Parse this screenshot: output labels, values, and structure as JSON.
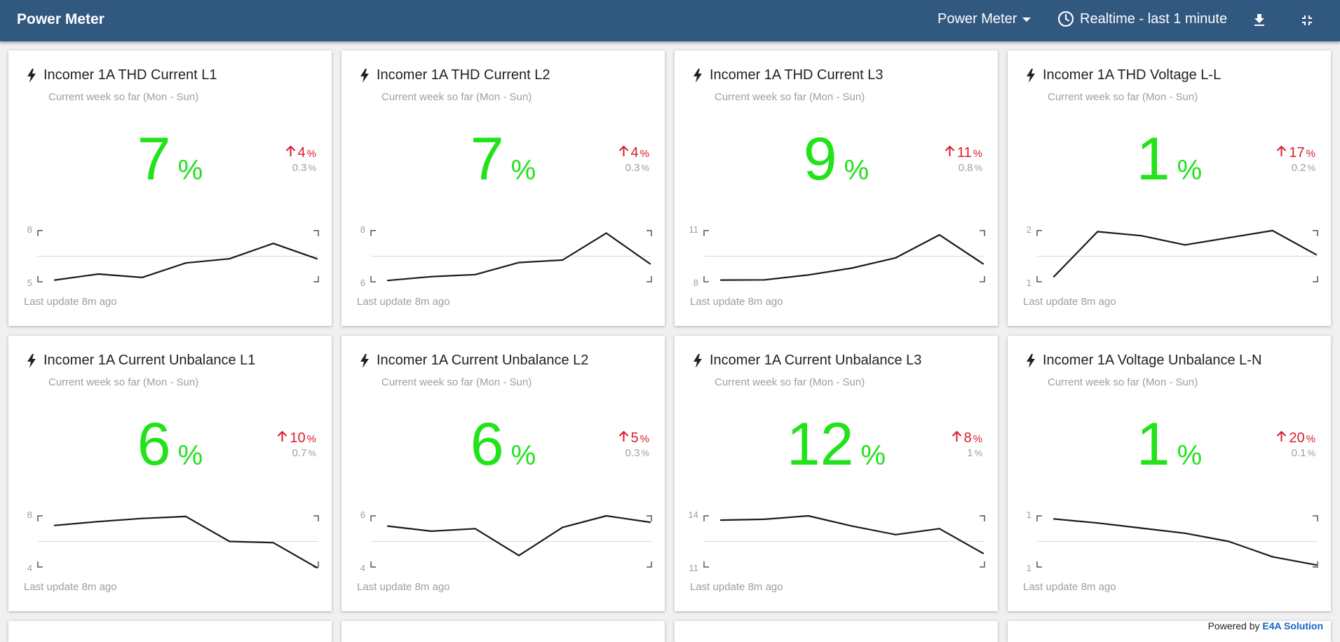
{
  "header": {
    "title": "Power Meter",
    "dashboard_select": "Power Meter",
    "time_range": "Realtime - last 1 minute",
    "icons": [
      "clock-icon",
      "download-icon",
      "exit-fullscreen-icon"
    ]
  },
  "colors": {
    "header_bg": "#31587f",
    "value_green": "#22e21a",
    "delta_red": "#d81b2c",
    "muted_grey": "#9e9e9e",
    "brand_blue": "#1565c0"
  },
  "cards": [
    {
      "title": "Incomer 1A THD Current L1",
      "subtitle": "Current week so far (Mon - Sun)",
      "value": "7",
      "unit": "%",
      "delta": "4",
      "delta_unit": "%",
      "delta_direction": "up",
      "prev": "0.3",
      "prev_unit": "%",
      "ymax_label": "8",
      "ymin_label": "5",
      "ymax": 8,
      "ymin": 5,
      "series": [
        5.1,
        5.45,
        5.25,
        6.1,
        6.35,
        7.25,
        6.35
      ],
      "update": "Last update 8m ago"
    },
    {
      "title": "Incomer 1A THD Current L2",
      "subtitle": "Current week so far (Mon - Sun)",
      "value": "7",
      "unit": "%",
      "delta": "4",
      "delta_unit": "%",
      "delta_direction": "up",
      "prev": "0.3",
      "prev_unit": "%",
      "ymax_label": "8",
      "ymin_label": "6",
      "ymax": 8,
      "ymin": 6,
      "series": [
        6.05,
        6.2,
        6.28,
        6.75,
        6.85,
        7.9,
        6.7
      ],
      "update": "Last update 8m ago"
    },
    {
      "title": "Incomer 1A THD Current L3",
      "subtitle": "Current week so far (Mon - Sun)",
      "value": "9",
      "unit": "%",
      "delta": "11",
      "delta_unit": "%",
      "delta_direction": "up",
      "prev": "0.8",
      "prev_unit": "%",
      "ymax_label": "11",
      "ymin_label": "8",
      "ymax": 11,
      "ymin": 8,
      "series": [
        8.1,
        8.11,
        8.4,
        8.8,
        9.4,
        10.75,
        9.05
      ],
      "update": "Last update 8m ago"
    },
    {
      "title": "Incomer 1A THD Voltage L-L",
      "subtitle": "Current week so far (Mon - Sun)",
      "value": "1",
      "unit": "%",
      "delta": "17",
      "delta_unit": "%",
      "delta_direction": "up",
      "prev": "0.2",
      "prev_unit": "%",
      "ymax_label": "2",
      "ymin_label": "1",
      "ymax": 2,
      "ymin": 1,
      "series": [
        1.1,
        1.98,
        1.9,
        1.72,
        1.86,
        2.0,
        1.53
      ],
      "update": "Last update 8m ago"
    },
    {
      "title": "Incomer 1A Current Unbalance L1",
      "subtitle": "Current week so far (Mon - Sun)",
      "value": "6",
      "unit": "%",
      "delta": "10",
      "delta_unit": "%",
      "delta_direction": "up",
      "prev": "0.7",
      "prev_unit": "%",
      "ymax_label": "8",
      "ymin_label": "4",
      "ymax": 8,
      "ymin": 4,
      "series": [
        7.25,
        7.55,
        7.8,
        7.95,
        6.0,
        5.9,
        3.95
      ],
      "update": "Last update 8m ago"
    },
    {
      "title": "Incomer 1A Current Unbalance L2",
      "subtitle": "Current week so far (Mon - Sun)",
      "value": "6",
      "unit": "%",
      "delta": "5",
      "delta_unit": "%",
      "delta_direction": "up",
      "prev": "0.3",
      "prev_unit": "%",
      "ymax_label": "6",
      "ymin_label": "4",
      "ymax": 6,
      "ymin": 4,
      "series": [
        5.6,
        5.4,
        5.5,
        4.45,
        5.55,
        6.0,
        5.75
      ],
      "update": "Last update 8m ago"
    },
    {
      "title": "Incomer 1A Current Unbalance L3",
      "subtitle": "Current week so far (Mon - Sun)",
      "value": "12",
      "unit": "%",
      "delta": "8",
      "delta_unit": "%",
      "delta_direction": "up",
      "prev": "1",
      "prev_unit": "%",
      "ymax_label": "14",
      "ymin_label": "11",
      "ymax": 14,
      "ymin": 11,
      "series": [
        13.75,
        13.8,
        14.0,
        13.4,
        12.9,
        13.25,
        11.8
      ],
      "update": "Last update 8m ago"
    },
    {
      "title": "Incomer 1A Voltage Unbalance L-N",
      "subtitle": "Current week so far (Mon - Sun)",
      "value": "1",
      "unit": "%",
      "delta": "20",
      "delta_unit": "%",
      "delta_direction": "up",
      "prev": "0.1",
      "prev_unit": "%",
      "ymax_label": "1",
      "ymin_label": "1",
      "ymax": 1,
      "ymin": 0.5,
      "series": [
        0.97,
        0.93,
        0.88,
        0.83,
        0.75,
        0.6,
        0.52
      ],
      "update": "Last update 8m ago"
    }
  ],
  "footer": {
    "powered_prefix": "Powered by",
    "brand": "E4A Solution"
  }
}
